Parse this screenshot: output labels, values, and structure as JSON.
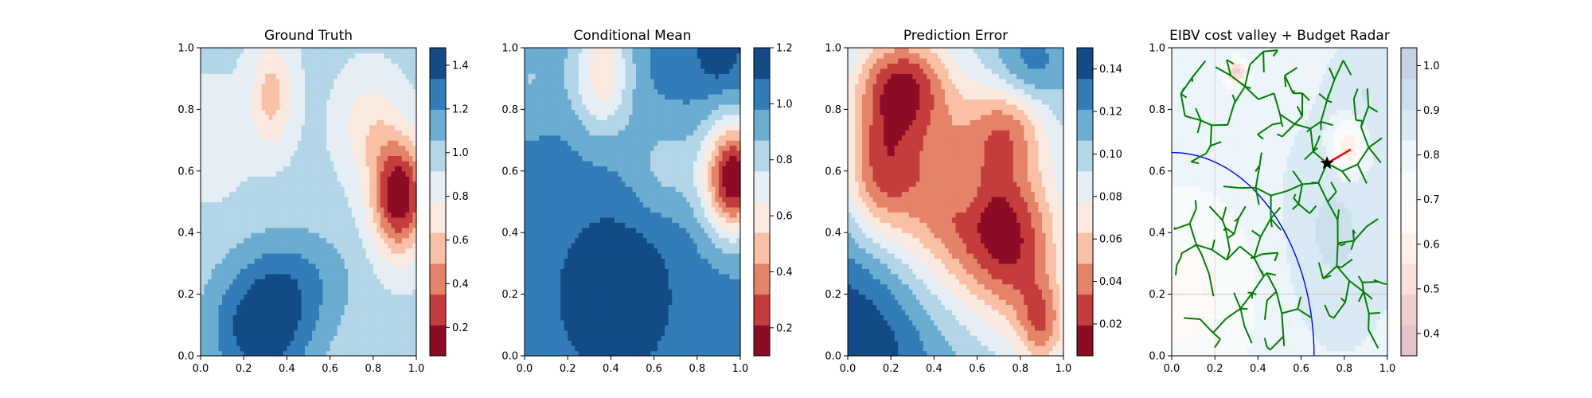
{
  "figure": {
    "background": "#ffffff"
  },
  "chart_data": [
    {
      "type": "heatmap",
      "title": "Ground Truth",
      "xlabel": "",
      "ylabel": "",
      "xlim": [
        0,
        1
      ],
      "ylim": [
        0,
        1
      ],
      "xticks": [
        "0.0",
        "0.2",
        "0.4",
        "0.6",
        "0.8",
        "1.0"
      ],
      "yticks": [
        "0.0",
        "0.2",
        "0.4",
        "0.6",
        "0.8",
        "1.0"
      ],
      "colormap": "RdBu",
      "colorbar": {
        "range": [
          0.07,
          1.48
        ],
        "ticks": [
          0.2,
          0.4,
          0.6,
          0.8,
          1.0,
          1.2,
          1.4
        ],
        "tick_labels": [
          "0.2",
          "0.4",
          "0.6",
          "0.8",
          "1.0",
          "1.2",
          "1.4"
        ]
      },
      "field": {
        "base": 0.95,
        "terms": [
          {
            "x": 0.92,
            "y": 0.52,
            "sx": 0.09,
            "sy": 0.13,
            "a": -0.88
          },
          {
            "x": 0.33,
            "y": 0.85,
            "sx": 0.07,
            "sy": 0.12,
            "a": -0.38
          },
          {
            "x": 0.78,
            "y": 0.75,
            "sx": 0.1,
            "sy": 0.12,
            "a": -0.25
          },
          {
            "x": 0.28,
            "y": 0.08,
            "sx": 0.17,
            "sy": 0.15,
            "a": 0.48
          },
          {
            "x": 0.45,
            "y": 0.25,
            "sx": 0.18,
            "sy": 0.12,
            "a": 0.22
          },
          {
            "x": 0.05,
            "y": 0.7,
            "sx": 0.12,
            "sy": 0.14,
            "a": -0.12
          }
        ]
      }
    },
    {
      "type": "heatmap",
      "title": "Conditional Mean",
      "xlabel": "",
      "ylabel": "",
      "xlim": [
        0,
        1
      ],
      "ylim": [
        0,
        1
      ],
      "xticks": [
        "0.0",
        "0.2",
        "0.4",
        "0.6",
        "0.8",
        "1.0"
      ],
      "yticks": [
        "0.0",
        "0.2",
        "0.4",
        "0.6",
        "0.8",
        "1.0"
      ],
      "colormap": "RdBu",
      "colorbar": {
        "range": [
          0.1,
          1.2
        ],
        "ticks": [
          0.2,
          0.4,
          0.6,
          0.8,
          1.0,
          1.2
        ],
        "tick_labels": [
          "0.2",
          "0.4",
          "0.6",
          "0.8",
          "1.0",
          "1.2"
        ]
      },
      "field": {
        "base": 1.02,
        "terms": [
          {
            "x": 0.97,
            "y": 0.58,
            "sx": 0.1,
            "sy": 0.13,
            "a": -0.92
          },
          {
            "x": 0.36,
            "y": 0.92,
            "sx": 0.1,
            "sy": 0.14,
            "a": -0.45
          },
          {
            "x": 0.42,
            "y": 0.2,
            "sx": 0.17,
            "sy": 0.17,
            "a": 0.22
          },
          {
            "x": 0.65,
            "y": 0.62,
            "sx": 0.12,
            "sy": 0.12,
            "a": -0.18
          },
          {
            "x": 0.02,
            "y": 0.9,
            "sx": 0.12,
            "sy": 0.12,
            "a": -0.15
          },
          {
            "x": 0.9,
            "y": 0.98,
            "sx": 0.08,
            "sy": 0.08,
            "a": 0.15
          }
        ]
      }
    },
    {
      "type": "heatmap",
      "title": "Prediction Error",
      "xlabel": "",
      "ylabel": "",
      "xlim": [
        0,
        1
      ],
      "ylim": [
        0,
        1
      ],
      "xticks": [
        "0.0",
        "0.2",
        "0.4",
        "0.6",
        "0.8",
        "1.0"
      ],
      "yticks": [
        "0.0",
        "0.2",
        "0.4",
        "0.6",
        "0.8",
        "1.0"
      ],
      "colormap": "RdBu",
      "colorbar": {
        "range": [
          0.005,
          0.15
        ],
        "ticks": [
          0.02,
          0.04,
          0.06,
          0.08,
          0.1,
          0.12,
          0.14
        ],
        "tick_labels": [
          "0.02",
          "0.04",
          "0.06",
          "0.08",
          "0.10",
          "0.12",
          "0.14"
        ]
      },
      "field": {
        "base": 0.1,
        "terms": [
          {
            "x": 0.25,
            "y": 0.88,
            "sx": 0.15,
            "sy": 0.12,
            "a": -0.075
          },
          {
            "x": 0.15,
            "y": 0.6,
            "sx": 0.12,
            "sy": 0.15,
            "a": -0.06
          },
          {
            "x": 0.5,
            "y": 0.5,
            "sx": 0.22,
            "sy": 0.22,
            "a": -0.07
          },
          {
            "x": 0.78,
            "y": 0.35,
            "sx": 0.15,
            "sy": 0.18,
            "a": -0.06
          },
          {
            "x": 0.9,
            "y": 0.1,
            "sx": 0.08,
            "sy": 0.1,
            "a": -0.05
          },
          {
            "x": 0.75,
            "y": 0.75,
            "sx": 0.12,
            "sy": 0.1,
            "a": -0.04
          },
          {
            "x": 0.02,
            "y": 0.02,
            "sx": 0.3,
            "sy": 0.3,
            "a": 0.05
          },
          {
            "x": 0.85,
            "y": 0.95,
            "sx": 0.12,
            "sy": 0.1,
            "a": 0.03
          },
          {
            "x": 0.55,
            "y": 0.55,
            "sx": 0.06,
            "sy": 0.08,
            "a": 0.02
          }
        ]
      }
    },
    {
      "type": "heatmap",
      "title": "EIBV cost valley + Budget Radar",
      "xlabel": "",
      "ylabel": "",
      "xlim": [
        0,
        1
      ],
      "ylim": [
        0,
        1
      ],
      "xticks": [
        "0.0",
        "0.2",
        "0.4",
        "0.6",
        "0.8",
        "1.0"
      ],
      "yticks": [
        "0.0",
        "0.2",
        "0.4",
        "0.6",
        "0.8",
        "1.0"
      ],
      "colormap": "RdBu",
      "colorbar": {
        "range": [
          0.35,
          1.04
        ],
        "ticks": [
          0.4,
          0.5,
          0.6,
          0.7,
          0.8,
          0.9,
          1.0
        ],
        "tick_labels": [
          "0.4",
          "0.5",
          "0.6",
          "0.7",
          "0.8",
          "0.9",
          "1.0"
        ],
        "alpha": 0.25
      },
      "field": {
        "base": 0.82,
        "terms": [
          {
            "x": 0.3,
            "y": 0.92,
            "sx": 0.04,
            "sy": 0.03,
            "a": -0.35
          },
          {
            "x": 0.82,
            "y": 0.68,
            "sx": 0.05,
            "sy": 0.06,
            "a": -0.3
          },
          {
            "x": 0.05,
            "y": 0.2,
            "sx": 0.25,
            "sy": 0.25,
            "a": -0.15
          },
          {
            "x": 0.75,
            "y": 0.4,
            "sx": 0.15,
            "sy": 0.2,
            "a": 0.1
          },
          {
            "x": 0.9,
            "y": 0.85,
            "sx": 0.1,
            "sy": 0.1,
            "a": 0.08
          }
        ]
      },
      "overlays": {
        "current_location": {
          "x": 0.72,
          "y": 0.625
        },
        "tree_color": "#008000",
        "tree": {
          "nodes": 220,
          "step": 0.075,
          "seed": 7
        },
        "route": {
          "color": "#ff0000",
          "points": [
            [
              0.72,
              0.625
            ],
            [
              0.77,
              0.645
            ],
            [
              0.83,
              0.67
            ]
          ]
        },
        "radar_ellipse": {
          "color": "#0000ff",
          "cx": 0.0,
          "cy": 0.0,
          "rx": 0.66,
          "ry": 0.66,
          "theta_deg": [
            0,
            90
          ]
        },
        "grid_lines": {
          "color": "#d08080",
          "y": [
            0.2
          ],
          "x": [
            0.2
          ]
        }
      }
    }
  ]
}
